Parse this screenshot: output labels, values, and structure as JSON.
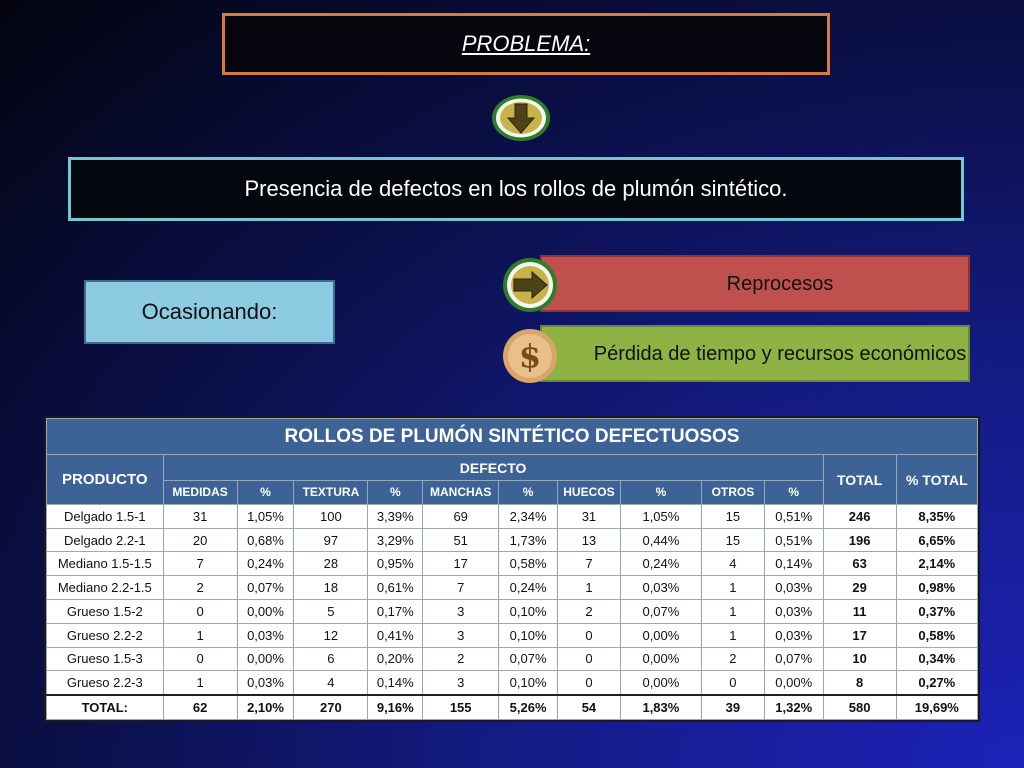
{
  "problem_title": "PROBLEMA:",
  "problem_statement": "Presencia de defectos en los rollos de plumón sintético.",
  "cause_label": "Ocasionando:",
  "effects": [
    "Reprocesos",
    "Pérdida de tiempo y recursos económicos"
  ],
  "table": {
    "title": "ROLLOS DE PLUMÓN SINTÉTICO DEFECTUOSOS",
    "producto_header": "PRODUCTO",
    "defecto_header": "DEFECTO",
    "total_header": "TOTAL",
    "pct_total_header": "% TOTAL",
    "subheaders": [
      "MEDIDAS",
      "%",
      "TEXTURA",
      "%",
      "MANCHAS",
      "%",
      "HUECOS",
      "%",
      "OTROS",
      "%"
    ],
    "rows": [
      [
        "Delgado 1.5-1",
        "31",
        "1,05%",
        "100",
        "3,39%",
        "69",
        "2,34%",
        "31",
        "1,05%",
        "15",
        "0,51%",
        "246",
        "8,35%"
      ],
      [
        "Delgado 2.2-1",
        "20",
        "0,68%",
        "97",
        "3,29%",
        "51",
        "1,73%",
        "13",
        "0,44%",
        "15",
        "0,51%",
        "196",
        "6,65%"
      ],
      [
        "Mediano 1.5-1.5",
        "7",
        "0,24%",
        "28",
        "0,95%",
        "17",
        "0,58%",
        "7",
        "0,24%",
        "4",
        "0,14%",
        "63",
        "2,14%"
      ],
      [
        "Mediano 2.2-1.5",
        "2",
        "0,07%",
        "18",
        "0,61%",
        "7",
        "0,24%",
        "1",
        "0,03%",
        "1",
        "0,03%",
        "29",
        "0,98%"
      ],
      [
        "Grueso 1.5-2",
        "0",
        "0,00%",
        "5",
        "0,17%",
        "3",
        "0,10%",
        "2",
        "0,07%",
        "1",
        "0,03%",
        "11",
        "0,37%"
      ],
      [
        "Grueso 2.2-2",
        "1",
        "0,03%",
        "12",
        "0,41%",
        "3",
        "0,10%",
        "0",
        "0,00%",
        "1",
        "0,03%",
        "17",
        "0,58%"
      ],
      [
        "Grueso 1.5-3",
        "0",
        "0,00%",
        "6",
        "0,20%",
        "2",
        "0,07%",
        "0",
        "0,00%",
        "2",
        "0,07%",
        "10",
        "0,34%"
      ],
      [
        "Grueso 2.2-3",
        "1",
        "0,03%",
        "4",
        "0,14%",
        "3",
        "0,10%",
        "0",
        "0,00%",
        "0",
        "0,00%",
        "8",
        "0,27%"
      ]
    ],
    "total_row": [
      "TOTAL:",
      "62",
      "2,10%",
      "270",
      "9,16%",
      "155",
      "5,26%",
      "54",
      "1,83%",
      "39",
      "1,32%",
      "580",
      "19,69%"
    ]
  },
  "icons": [
    "down-arrow-icon",
    "right-arrow-icon",
    "dollar-icon"
  ],
  "colors": {
    "problem_border": "#d97b3a",
    "statement_border": "#6fc8d4",
    "cause_box": "#8ccbe0",
    "effect_red": "#c0504d",
    "effect_green": "#8fb244",
    "table_header": "#3d6396"
  }
}
